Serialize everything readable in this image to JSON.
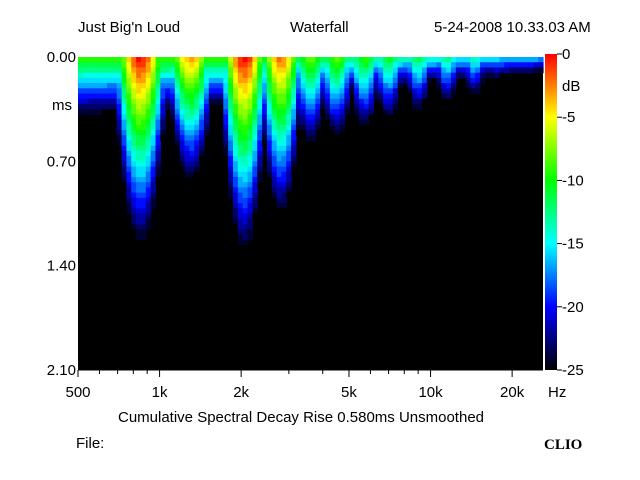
{
  "header": {
    "device": "Just Big'n Loud",
    "view": "Waterfall",
    "timestamp": "5-24-2008 10.33.03 AM"
  },
  "footer": {
    "description": "Cumulative Spectral Decay   Rise 0.580ms   Unsmoothed",
    "file_label": "File:",
    "brand": "CLIO"
  },
  "chart_data": {
    "type": "heatmap",
    "title": "Waterfall",
    "subtitle": "Cumulative Spectral Decay   Rise 0.580ms   Unsmoothed",
    "x_axis": {
      "unit": "Hz",
      "scale": "log",
      "range": [
        500,
        26000
      ],
      "tick_labels": [
        {
          "value": 500,
          "label": "500"
        },
        {
          "value": 1000,
          "label": "1k"
        },
        {
          "value": 2000,
          "label": "2k"
        },
        {
          "value": 5000,
          "label": "5k"
        },
        {
          "value": 10000,
          "label": "10k"
        },
        {
          "value": 20000,
          "label": "20k"
        }
      ]
    },
    "y_axis": {
      "unit": "ms",
      "range": [
        0.0,
        2.1
      ],
      "inverted": true,
      "tick_labels": [
        {
          "value": 0.0,
          "label": "0.00"
        },
        {
          "value": 0.7,
          "label": "0.70"
        },
        {
          "value": 1.4,
          "label": "1.40"
        },
        {
          "value": 2.1,
          "label": "2.10"
        }
      ]
    },
    "colorbar": {
      "unit": "dB",
      "range": [
        -25,
        0
      ],
      "tick_labels": [
        {
          "value": 0,
          "label": "0"
        },
        {
          "value": -5,
          "label": "-5"
        },
        {
          "value": -10,
          "label": "-10"
        },
        {
          "value": -15,
          "label": "-15"
        },
        {
          "value": -20,
          "label": "-20"
        },
        {
          "value": -25,
          "label": "-25"
        }
      ],
      "colors": [
        "#000000",
        "#0000ff",
        "#00ffff",
        "#00ff00",
        "#ffff00",
        "#ff0000"
      ]
    },
    "resonances": [
      {
        "freq": 850,
        "level": 0,
        "decay_ms": 1.25
      },
      {
        "freq": 1300,
        "level": -3,
        "decay_ms": 0.95
      },
      {
        "freq": 2050,
        "level": 0,
        "decay_ms": 1.3
      },
      {
        "freq": 2800,
        "level": -2,
        "decay_ms": 1.15
      },
      {
        "freq": 3600,
        "level": -8,
        "decay_ms": 0.85
      },
      {
        "freq": 4500,
        "level": -8,
        "decay_ms": 0.8
      },
      {
        "freq": 5700,
        "level": -9,
        "decay_ms": 0.75
      },
      {
        "freq": 7000,
        "level": -10,
        "decay_ms": 0.7
      },
      {
        "freq": 9000,
        "level": -11,
        "decay_ms": 0.65
      },
      {
        "freq": 11500,
        "level": -12,
        "decay_ms": 0.6
      },
      {
        "freq": 14500,
        "level": -13,
        "decay_ms": 0.55
      },
      {
        "freq": 17500,
        "level": -15,
        "decay_ms": 0.4
      }
    ]
  }
}
